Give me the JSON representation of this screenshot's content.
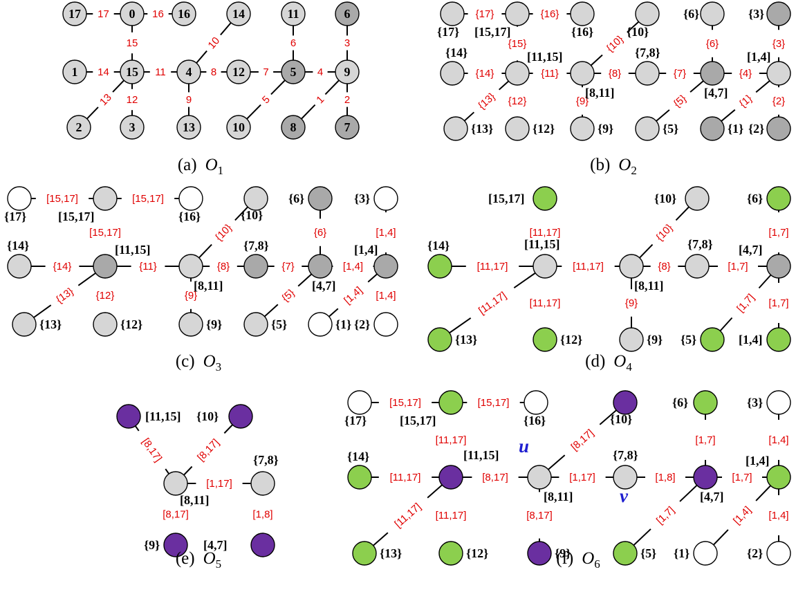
{
  "colors": {
    "light": "#d6d6d6",
    "dark": "#a9a9a9",
    "white": "#ffffff",
    "green": "#8ccf4e",
    "purple": "#6a2fa0",
    "label_red": "#e00000",
    "uv_blue": "#1f1fd0"
  },
  "panels": [
    {
      "id": "a",
      "caption": {
        "prefix": "(a)",
        "symbol": "O",
        "sub": "1"
      },
      "nodes": [
        {
          "id": "17",
          "label": "17",
          "color": "light"
        },
        {
          "id": "0",
          "label": "0",
          "color": "light"
        },
        {
          "id": "16",
          "label": "16",
          "color": "light"
        },
        {
          "id": "14",
          "label": "14",
          "color": "light"
        },
        {
          "id": "11",
          "label": "11",
          "color": "light"
        },
        {
          "id": "6",
          "label": "6",
          "color": "dark"
        },
        {
          "id": "1",
          "label": "1",
          "color": "light"
        },
        {
          "id": "15",
          "label": "15",
          "color": "light"
        },
        {
          "id": "4",
          "label": "4",
          "color": "light"
        },
        {
          "id": "12",
          "label": "12",
          "color": "light"
        },
        {
          "id": "5",
          "label": "5",
          "color": "dark"
        },
        {
          "id": "9",
          "label": "9",
          "color": "light"
        },
        {
          "id": "2",
          "label": "2",
          "color": "light"
        },
        {
          "id": "3",
          "label": "3",
          "color": "light"
        },
        {
          "id": "13",
          "label": "13",
          "color": "light"
        },
        {
          "id": "10",
          "label": "10",
          "color": "light"
        },
        {
          "id": "8",
          "label": "8",
          "color": "dark"
        },
        {
          "id": "7",
          "label": "7",
          "color": "dark"
        }
      ],
      "edges": [
        {
          "from": "17",
          "to": "0",
          "label": "17"
        },
        {
          "from": "0",
          "to": "16",
          "label": "16"
        },
        {
          "from": "0",
          "to": "15",
          "label": "15"
        },
        {
          "from": "1",
          "to": "15",
          "label": "14"
        },
        {
          "from": "15",
          "to": "4",
          "label": "11"
        },
        {
          "from": "4",
          "to": "12",
          "label": "8"
        },
        {
          "from": "12",
          "to": "5",
          "label": "7"
        },
        {
          "from": "5",
          "to": "9",
          "label": "4"
        },
        {
          "from": "4",
          "to": "14",
          "label": "10"
        },
        {
          "from": "11",
          "to": "5",
          "label": "6"
        },
        {
          "from": "9",
          "to": "6",
          "label": "3"
        },
        {
          "from": "15",
          "to": "2",
          "label": "13"
        },
        {
          "from": "15",
          "to": "3",
          "label": "12"
        },
        {
          "from": "4",
          "to": "13",
          "label": "9"
        },
        {
          "from": "5",
          "to": "10",
          "label": "5"
        },
        {
          "from": "9",
          "to": "8",
          "label": "1"
        },
        {
          "from": "9",
          "to": "7",
          "label": "2"
        }
      ]
    },
    {
      "id": "b",
      "caption": {
        "prefix": "(b)",
        "symbol": "O",
        "sub": "2"
      },
      "nodes": [
        {
          "id": "n17",
          "label": "{17}",
          "color": "light"
        },
        {
          "id": "n1517",
          "label": "[15,17]",
          "color": "light"
        },
        {
          "id": "n16",
          "label": "{16}",
          "color": "light"
        },
        {
          "id": "n10",
          "label": "{10}",
          "color": "light"
        },
        {
          "id": "n6",
          "label": "{6}",
          "color": "light"
        },
        {
          "id": "n3",
          "label": "{3}",
          "color": "dark"
        },
        {
          "id": "n14",
          "label": "{14}",
          "color": "light"
        },
        {
          "id": "n1115",
          "label": "[11,15]",
          "color": "light"
        },
        {
          "id": "n811",
          "label": "[8,11]",
          "color": "light"
        },
        {
          "id": "n78",
          "label": "{7,8}",
          "color": "light"
        },
        {
          "id": "n47",
          "label": "[4,7]",
          "color": "dark"
        },
        {
          "id": "n14b",
          "label": "[1,4]",
          "color": "light"
        },
        {
          "id": "n13",
          "label": "{13}",
          "color": "light"
        },
        {
          "id": "n12",
          "label": "{12}",
          "color": "light"
        },
        {
          "id": "n9",
          "label": "{9}",
          "color": "light"
        },
        {
          "id": "n5",
          "label": "{5}",
          "color": "light"
        },
        {
          "id": "n1",
          "label": "{1}",
          "color": "dark"
        },
        {
          "id": "n2",
          "label": "{2}",
          "color": "dark"
        }
      ],
      "edges": [
        {
          "from": "n17",
          "to": "n1517",
          "label": "{17}"
        },
        {
          "from": "n1517",
          "to": "n16",
          "label": "{16}"
        },
        {
          "from": "n1517",
          "to": "n1115",
          "label": "{15}"
        },
        {
          "from": "n14",
          "to": "n1115",
          "label": "{14}"
        },
        {
          "from": "n1115",
          "to": "n811",
          "label": "{11}"
        },
        {
          "from": "n811",
          "to": "n78",
          "label": "{8}"
        },
        {
          "from": "n78",
          "to": "n47",
          "label": "{7}"
        },
        {
          "from": "n47",
          "to": "n14b",
          "label": "{4}"
        },
        {
          "from": "n811",
          "to": "n10",
          "label": "{10}"
        },
        {
          "from": "n6",
          "to": "n47",
          "label": "{6}"
        },
        {
          "from": "n3",
          "to": "n14b",
          "label": "{3}"
        },
        {
          "from": "n1115",
          "to": "n13",
          "label": "{13}"
        },
        {
          "from": "n1115",
          "to": "n12",
          "label": "{12}"
        },
        {
          "from": "n811",
          "to": "n9",
          "label": "{9}"
        },
        {
          "from": "n47",
          "to": "n5",
          "label": "{5}"
        },
        {
          "from": "n14b",
          "to": "n1",
          "label": "{1}"
        },
        {
          "from": "n14b",
          "to": "n2",
          "label": "{2}"
        }
      ]
    },
    {
      "id": "c",
      "caption": {
        "prefix": "(c)",
        "symbol": "O",
        "sub": "3"
      },
      "nodes": [
        {
          "id": "n17",
          "label": "{17}",
          "color": "white"
        },
        {
          "id": "n1517",
          "label": "[15,17]",
          "color": "light"
        },
        {
          "id": "n16",
          "label": "{16}",
          "color": "white"
        },
        {
          "id": "n10",
          "label": "{10}",
          "color": "light"
        },
        {
          "id": "n6",
          "label": "{6}",
          "color": "dark"
        },
        {
          "id": "n3",
          "label": "{3}",
          "color": "white"
        },
        {
          "id": "n14",
          "label": "{14}",
          "color": "light"
        },
        {
          "id": "n1115",
          "label": "[11,15]",
          "color": "dark"
        },
        {
          "id": "n811",
          "label": "[8,11]",
          "color": "light"
        },
        {
          "id": "n78",
          "label": "{7,8}",
          "color": "dark"
        },
        {
          "id": "n47",
          "label": "[4,7]",
          "color": "dark"
        },
        {
          "id": "n14b",
          "label": "[1,4]",
          "color": "dark"
        },
        {
          "id": "n13",
          "label": "{13}",
          "color": "light"
        },
        {
          "id": "n12",
          "label": "{12}",
          "color": "light"
        },
        {
          "id": "n9",
          "label": "{9}",
          "color": "light"
        },
        {
          "id": "n5",
          "label": "{5}",
          "color": "light"
        },
        {
          "id": "n1",
          "label": "{1}",
          "color": "white"
        },
        {
          "id": "n2",
          "label": "{2}",
          "color": "white"
        }
      ],
      "edges": [
        {
          "from": "n17",
          "to": "n1517",
          "label": "[15,17]"
        },
        {
          "from": "n1517",
          "to": "n16",
          "label": "[15,17]"
        },
        {
          "from": "n1517",
          "to": "n1115",
          "label": "[15,17]"
        },
        {
          "from": "n14",
          "to": "n1115",
          "label": "{14}"
        },
        {
          "from": "n1115",
          "to": "n811",
          "label": "{11}"
        },
        {
          "from": "n811",
          "to": "n78",
          "label": "{8}"
        },
        {
          "from": "n78",
          "to": "n47",
          "label": "{7}"
        },
        {
          "from": "n47",
          "to": "n14b",
          "label": "[1,4]"
        },
        {
          "from": "n811",
          "to": "n10",
          "label": "{10}"
        },
        {
          "from": "n6",
          "to": "n47",
          "label": "{6}"
        },
        {
          "from": "n3",
          "to": "n14b",
          "label": "[1,4]"
        },
        {
          "from": "n1115",
          "to": "n13",
          "label": "{13}"
        },
        {
          "from": "n1115",
          "to": "n12",
          "label": "{12}"
        },
        {
          "from": "n811",
          "to": "n9",
          "label": "{9}"
        },
        {
          "from": "n47",
          "to": "n5",
          "label": "{5}"
        },
        {
          "from": "n14b",
          "to": "n1",
          "label": "[1,4]"
        },
        {
          "from": "n14b",
          "to": "n2",
          "label": "[1,4]"
        }
      ]
    },
    {
      "id": "d",
      "caption": {
        "prefix": "(d)",
        "symbol": "O",
        "sub": "4"
      },
      "nodes": [
        {
          "id": "n1517",
          "label": "[15,17]",
          "color": "green"
        },
        {
          "id": "n10",
          "label": "{10}",
          "color": "light"
        },
        {
          "id": "n6",
          "label": "{6}",
          "color": "green"
        },
        {
          "id": "n14",
          "label": "{14}",
          "color": "green"
        },
        {
          "id": "n1115",
          "label": "[11,15]",
          "color": "light"
        },
        {
          "id": "n811",
          "label": "[8,11]",
          "color": "light"
        },
        {
          "id": "n78",
          "label": "{7,8}",
          "color": "light"
        },
        {
          "id": "n47",
          "label": "[4,7]",
          "color": "dark"
        },
        {
          "id": "n13",
          "label": "{13}",
          "color": "green"
        },
        {
          "id": "n12",
          "label": "{12}",
          "color": "green"
        },
        {
          "id": "n9",
          "label": "{9}",
          "color": "light"
        },
        {
          "id": "n5",
          "label": "{5}",
          "color": "green"
        },
        {
          "id": "n14b",
          "label": "[1,4]",
          "color": "green"
        }
      ],
      "edges": [
        {
          "from": "n1517",
          "to": "n1115",
          "label": "[11,17]"
        },
        {
          "from": "n14",
          "to": "n1115",
          "label": "[11,17]"
        },
        {
          "from": "n1115",
          "to": "n811",
          "label": "[11,17]"
        },
        {
          "from": "n811",
          "to": "n78",
          "label": "{8}"
        },
        {
          "from": "n78",
          "to": "n47",
          "label": "[1,7]"
        },
        {
          "from": "n811",
          "to": "n10",
          "label": "{10}"
        },
        {
          "from": "n6",
          "to": "n47",
          "label": "[1,7]"
        },
        {
          "from": "n1115",
          "to": "n13",
          "label": "[11,17]"
        },
        {
          "from": "n1115",
          "to": "n12",
          "label": "[11,17]"
        },
        {
          "from": "n811",
          "to": "n9",
          "label": "{9}"
        },
        {
          "from": "n47",
          "to": "n5",
          "label": "[1,7]"
        },
        {
          "from": "n47",
          "to": "n14b",
          "label": "[1,7]"
        }
      ]
    },
    {
      "id": "e",
      "caption": {
        "prefix": "(e)",
        "symbol": "O",
        "sub": "5"
      },
      "nodes": [
        {
          "id": "n1115",
          "label": "[11,15]",
          "color": "purple"
        },
        {
          "id": "n10",
          "label": "{10}",
          "color": "purple"
        },
        {
          "id": "n811",
          "label": "[8,11]",
          "color": "light"
        },
        {
          "id": "n78",
          "label": "{7,8}",
          "color": "light"
        },
        {
          "id": "n9",
          "label": "{9}",
          "color": "purple"
        },
        {
          "id": "n47",
          "label": "[4,7]",
          "color": "purple"
        }
      ],
      "edges": [
        {
          "from": "n1115",
          "to": "n811",
          "label": "[8,17]"
        },
        {
          "from": "n10",
          "to": "n811",
          "label": "[8,17]"
        },
        {
          "from": "n811",
          "to": "n78",
          "label": "[1,17]"
        },
        {
          "from": "n811",
          "to": "n9",
          "label": "[8,17]"
        },
        {
          "from": "n78",
          "to": "n47",
          "label": "[1,8]"
        }
      ]
    },
    {
      "id": "f",
      "caption": {
        "prefix": "(f)",
        "symbol": "O",
        "sub": "6"
      },
      "nodes": [
        {
          "id": "n17",
          "label": "{17}",
          "color": "white"
        },
        {
          "id": "n1517",
          "label": "[15,17]",
          "color": "green"
        },
        {
          "id": "n16",
          "label": "{16}",
          "color": "white"
        },
        {
          "id": "n10",
          "label": "{10}",
          "color": "purple"
        },
        {
          "id": "n6",
          "label": "{6}",
          "color": "green"
        },
        {
          "id": "n3",
          "label": "{3}",
          "color": "white"
        },
        {
          "id": "n14",
          "label": "{14}",
          "color": "green"
        },
        {
          "id": "n1115",
          "label": "[11,15]",
          "color": "purple"
        },
        {
          "id": "n811",
          "label": "[8,11]",
          "color": "light"
        },
        {
          "id": "n78",
          "label": "{7,8}",
          "color": "light"
        },
        {
          "id": "n47",
          "label": "[4,7]",
          "color": "purple"
        },
        {
          "id": "n14b",
          "label": "[1,4]",
          "color": "green"
        },
        {
          "id": "n13",
          "label": "{13}",
          "color": "green"
        },
        {
          "id": "n12",
          "label": "{12}",
          "color": "green"
        },
        {
          "id": "n9",
          "label": "{9}",
          "color": "purple"
        },
        {
          "id": "n5",
          "label": "{5}",
          "color": "green"
        },
        {
          "id": "n1",
          "label": "{1}",
          "color": "white"
        },
        {
          "id": "n2",
          "label": "{2}",
          "color": "white"
        }
      ],
      "edges": [
        {
          "from": "n17",
          "to": "n1517",
          "label": "[15,17]"
        },
        {
          "from": "n1517",
          "to": "n16",
          "label": "[15,17]"
        },
        {
          "from": "n1517",
          "to": "n1115",
          "label": "[11,17]"
        },
        {
          "from": "n14",
          "to": "n1115",
          "label": "[11,17]"
        },
        {
          "from": "n1115",
          "to": "n811",
          "label": "[8,17]"
        },
        {
          "from": "n811",
          "to": "n78",
          "label": "[1,17]"
        },
        {
          "from": "n78",
          "to": "n47",
          "label": "[1,8]"
        },
        {
          "from": "n47",
          "to": "n14b",
          "label": "[1,7]"
        },
        {
          "from": "n811",
          "to": "n10",
          "label": "[8,17]"
        },
        {
          "from": "n6",
          "to": "n47",
          "label": "[1,7]"
        },
        {
          "from": "n3",
          "to": "n14b",
          "label": "[1,4]"
        },
        {
          "from": "n1115",
          "to": "n13",
          "label": "[11,17]"
        },
        {
          "from": "n1115",
          "to": "n12",
          "label": "[11,17]"
        },
        {
          "from": "n811",
          "to": "n9",
          "label": "[8,17]"
        },
        {
          "from": "n47",
          "to": "n5",
          "label": "[1,7]"
        },
        {
          "from": "n14b",
          "to": "n1",
          "label": "[1,4]"
        },
        {
          "from": "n14b",
          "to": "n2",
          "label": "[1,4]"
        }
      ],
      "markers": [
        {
          "name": "u-marker",
          "text": "u",
          "near": "n811"
        },
        {
          "name": "v-marker",
          "text": "v",
          "near": "n78"
        }
      ]
    }
  ]
}
